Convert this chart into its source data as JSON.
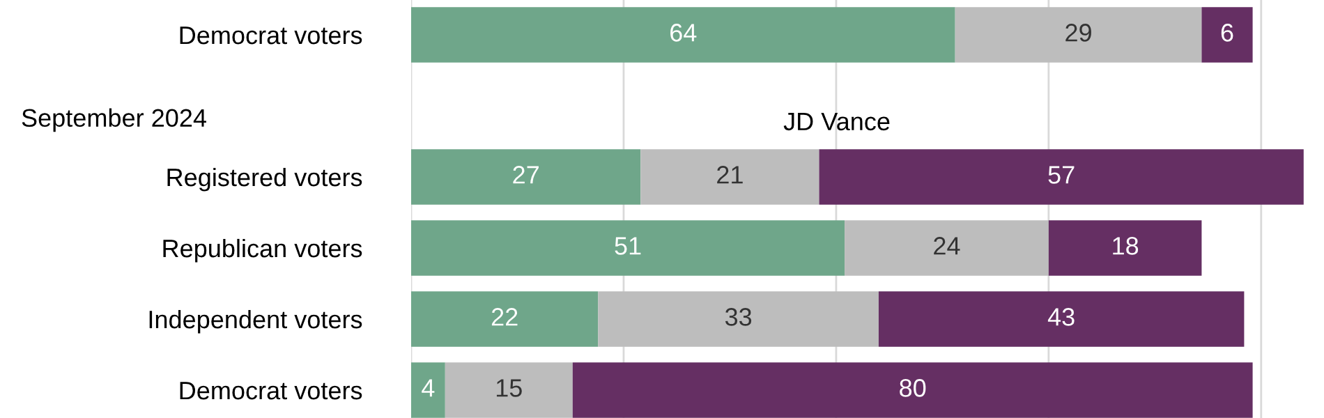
{
  "chart_data": {
    "type": "bar",
    "orientation": "horizontal",
    "stacked": true,
    "categories": [
      "Democrat voters",
      null,
      "Registered voters",
      "Republican voters",
      "Independent voters",
      "Democrat voters"
    ],
    "series": [
      {
        "color": "#6fa68a",
        "values": [
          64,
          null,
          27,
          51,
          22,
          4
        ]
      },
      {
        "color": "#bdbdbd",
        "values": [
          29,
          null,
          21,
          24,
          33,
          15
        ]
      },
      {
        "color": "#652f63",
        "values": [
          6,
          null,
          57,
          18,
          43,
          80
        ]
      }
    ],
    "annotations": [
      "September 2024",
      "JD Vance"
    ],
    "xticks": [
      {
        "value": 0,
        "label": null
      },
      {
        "value": 25,
        "label": null
      },
      {
        "value": 50,
        "label": null
      },
      {
        "value": 75,
        "label": null
      },
      {
        "value": 100,
        "label": null
      }
    ],
    "tick_labels": "y",
    "grid": "x",
    "data_labels": true,
    "legend": false
  }
}
